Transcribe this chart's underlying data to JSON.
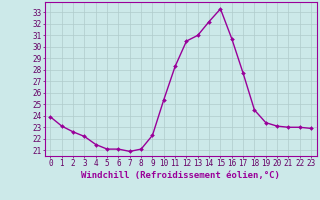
{
  "x": [
    0,
    1,
    2,
    3,
    4,
    5,
    6,
    7,
    8,
    9,
    10,
    11,
    12,
    13,
    14,
    15,
    16,
    17,
    18,
    19,
    20,
    21,
    22,
    23
  ],
  "y": [
    23.9,
    23.1,
    22.6,
    22.2,
    21.5,
    21.1,
    21.1,
    20.9,
    21.1,
    22.3,
    25.4,
    28.3,
    30.5,
    31.0,
    32.2,
    33.3,
    30.7,
    27.7,
    24.5,
    23.4,
    23.1,
    23.0,
    23.0,
    22.9
  ],
  "line_color": "#990099",
  "marker": "D",
  "markersize": 2.0,
  "linewidth": 1.0,
  "xlabel": "Windchill (Refroidissement éolien,°C)",
  "xlabel_fontsize": 6.5,
  "ylabel_ticks": [
    21,
    22,
    23,
    24,
    25,
    26,
    27,
    28,
    29,
    30,
    31,
    32,
    33
  ],
  "ylim": [
    20.5,
    33.9
  ],
  "xlim": [
    -0.5,
    23.5
  ],
  "bg_color": "#cce9e9",
  "grid_color": "#b0cccc",
  "tick_fontsize": 5.5,
  "xticks": [
    0,
    1,
    2,
    3,
    4,
    5,
    6,
    7,
    8,
    9,
    10,
    11,
    12,
    13,
    14,
    15,
    16,
    17,
    18,
    19,
    20,
    21,
    22,
    23
  ]
}
